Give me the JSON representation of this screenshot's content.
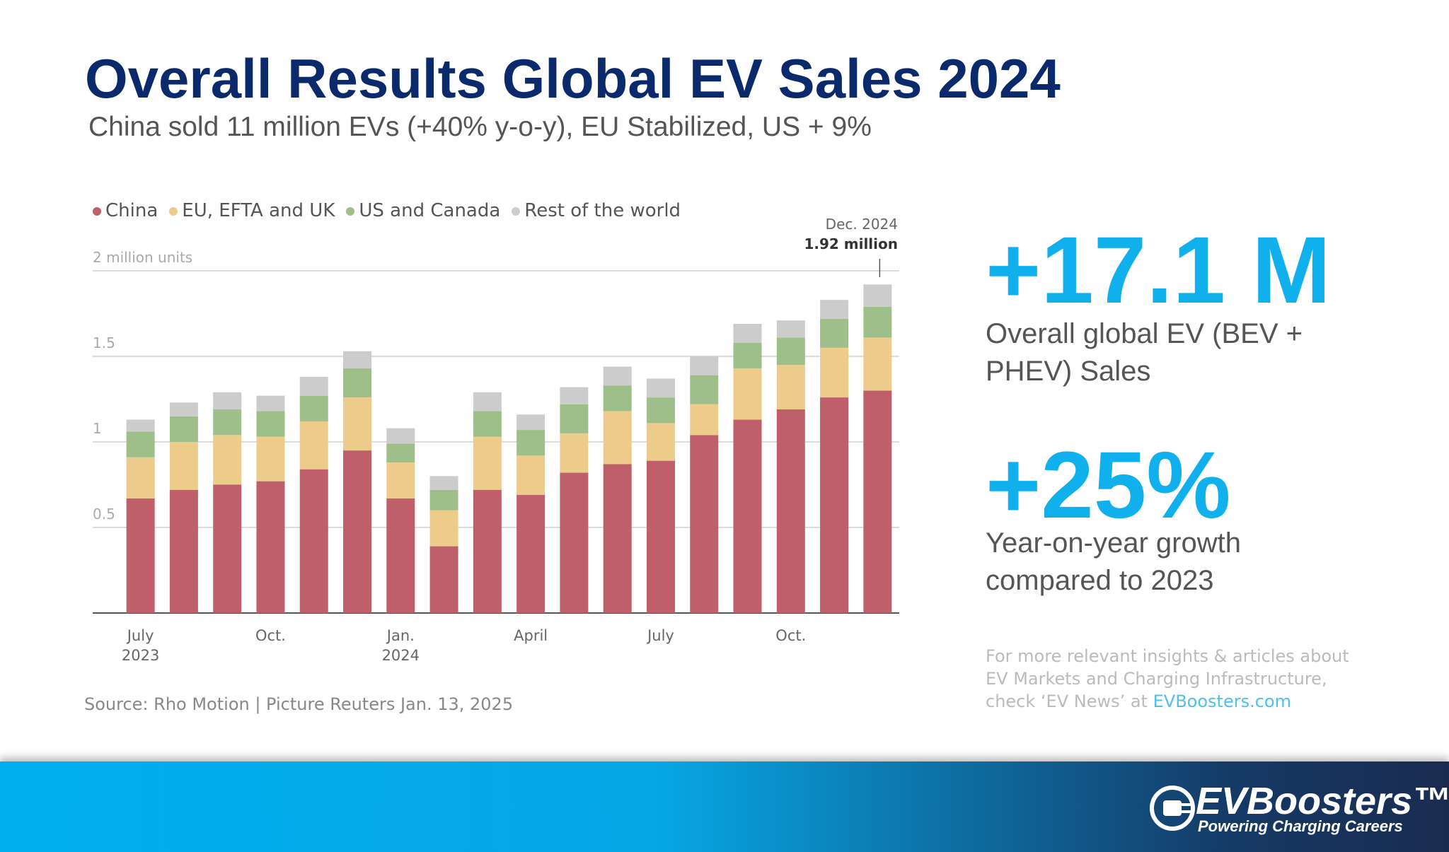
{
  "slide": {
    "title": "Overall Results Global EV Sales 2024",
    "subtitle": "China sold 11 million EVs (+40% y-o-y), EU Stabilized, US + 9%",
    "stats": [
      {
        "value": "+17.1 M",
        "text": "Overall global EV (BEV + PHEV) Sales"
      },
      {
        "value": "+25%",
        "text": "Year-on-year growth compared to 2023"
      }
    ],
    "note": "For more relevant insights & articles about EV Markets and Charging Infrastructure, check ‘EV News’ at",
    "link": "EVBoosters.com",
    "source": "Source: Rho Motion | Picture Reuters Jan. 13, 2025",
    "logo": "EVBoosters™",
    "tagline": "Powering Charging Careers"
  },
  "chart_data": {
    "type": "stacked_bar",
    "categories": [
      "July 2023",
      null,
      null,
      "Oct.",
      null,
      null,
      "Jan. 2024",
      null,
      null,
      "April",
      null,
      null,
      "July",
      null,
      null,
      "Oct.",
      null,
      null
    ],
    "series": [
      {
        "name": "China",
        "color": "#be5f69",
        "values": [
          0.67,
          0.72,
          0.75,
          0.77,
          0.84,
          0.95,
          0.67,
          0.39,
          0.72,
          0.69,
          0.82,
          0.87,
          0.89,
          1.04,
          1.13,
          1.19,
          1.26,
          1.3
        ]
      },
      {
        "name": "EU, EFTA and UK",
        "color": "#edcb8b",
        "values": [
          0.24,
          0.28,
          0.29,
          0.26,
          0.28,
          0.31,
          0.21,
          0.21,
          0.31,
          0.23,
          0.23,
          0.31,
          0.22,
          0.18,
          0.3,
          0.26,
          0.29,
          0.31
        ]
      },
      {
        "name": "US and Canada",
        "color": "#9fbf8a",
        "values": [
          0.15,
          0.15,
          0.15,
          0.15,
          0.15,
          0.17,
          0.11,
          0.12,
          0.15,
          0.15,
          0.17,
          0.15,
          0.15,
          0.17,
          0.15,
          0.16,
          0.17,
          0.18
        ]
      },
      {
        "name": "Rest of the world",
        "color": "#cccccc",
        "values": [
          0.07,
          0.08,
          0.1,
          0.09,
          0.11,
          0.1,
          0.09,
          0.08,
          0.11,
          0.09,
          0.1,
          0.11,
          0.11,
          0.11,
          0.11,
          0.1,
          0.11,
          0.13
        ]
      }
    ],
    "ylim": [
      0,
      2
    ],
    "yticks": [
      0.5,
      1,
      1.5,
      {
        "value": 2,
        "label": "2 million units"
      }
    ],
    "grid": true,
    "annotation": {
      "title": "Dec. 2024",
      "text": "1.92 million"
    }
  }
}
